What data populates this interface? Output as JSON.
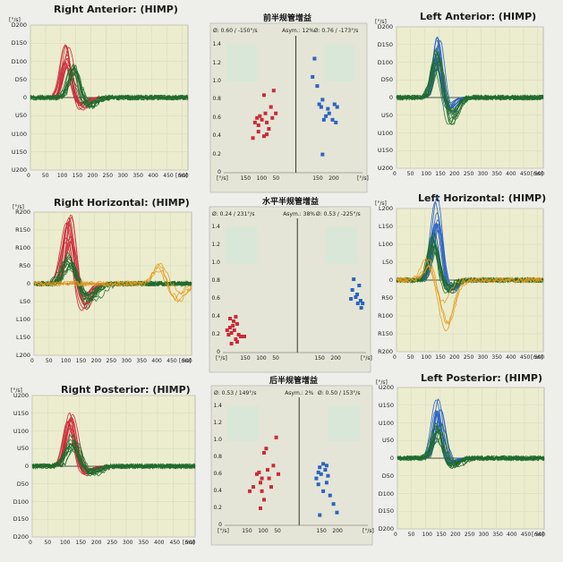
{
  "colors": {
    "red": "#cc2a37",
    "green": "#1f6b2e",
    "blue": "#2b63c4",
    "orange": "#e79a1b",
    "plotbg": "#ecedcf",
    "centerbg": "#e4e5d6"
  },
  "chart_data": [
    {
      "type": "line",
      "id": "ra",
      "title": "Right Anterior: (HIMP)",
      "unit": "[°/s]",
      "x_unit": "[ms]",
      "yticks": [
        "D200",
        "D150",
        "D100",
        "D50",
        "0",
        "U50",
        "U100",
        "U150",
        "U200"
      ],
      "xticks": [
        "0",
        "50",
        "100",
        "150",
        "200",
        "250",
        "300",
        "350",
        "400",
        "450",
        "500"
      ],
      "ylim": [
        -200,
        200
      ],
      "xlim": [
        0,
        520
      ],
      "series": [
        {
          "name": "head",
          "color": "red",
          "peak": 155,
          "center": 120,
          "width": 45,
          "undershoot": -25
        },
        {
          "name": "eye",
          "color": "green",
          "peak": 90,
          "center": 140,
          "width": 50,
          "undershoot": -20
        }
      ]
    },
    {
      "type": "line",
      "id": "rh",
      "title": "Right Horizontal: (HIMP)",
      "unit": "[°/s]",
      "x_unit": "[ms]",
      "yticks": [
        "R200",
        "R150",
        "R100",
        "R50",
        "0",
        "L50",
        "L100",
        "L150",
        "L200"
      ],
      "xticks": [
        "0",
        "50",
        "100",
        "150",
        "200",
        "250",
        "300",
        "350",
        "400",
        "450",
        "500"
      ],
      "ylim": [
        -200,
        200
      ],
      "xlim": [
        0,
        520
      ],
      "series": [
        {
          "name": "head",
          "color": "red",
          "peak": 210,
          "center": 115,
          "width": 48,
          "undershoot": -55
        },
        {
          "name": "eye",
          "color": "green",
          "peak": 85,
          "center": 115,
          "width": 60,
          "undershoot": -45
        },
        {
          "name": "saccade",
          "color": "orange",
          "peak": 60,
          "center": 420,
          "width": 60,
          "undershoot": -40
        }
      ]
    },
    {
      "type": "line",
      "id": "rp",
      "title": "Right Posterior: (HIMP)",
      "unit": "[°/s]",
      "x_unit": "[ms]",
      "yticks": [
        "U200",
        "U150",
        "U100",
        "U50",
        "0",
        "D50",
        "D100",
        "D150",
        "D200"
      ],
      "xticks": [
        "0",
        "50",
        "100",
        "150",
        "200",
        "250",
        "300",
        "350",
        "400",
        "450",
        "500"
      ],
      "ylim": [
        -200,
        200
      ],
      "xlim": [
        0,
        520
      ],
      "series": [
        {
          "name": "head",
          "color": "red",
          "peak": 170,
          "center": 120,
          "width": 48,
          "undershoot": -20
        },
        {
          "name": "eye",
          "color": "green",
          "peak": 90,
          "center": 130,
          "width": 55,
          "undershoot": -15
        }
      ]
    },
    {
      "type": "line",
      "id": "la",
      "title": "Left Anterior: (HIMP)",
      "unit": "[°/s]",
      "x_unit": "[ms]",
      "yticks": [
        "D200",
        "D150",
        "D100",
        "D50",
        "0",
        "U50",
        "U100",
        "U150",
        "U200"
      ],
      "xticks": [
        "0",
        "50",
        "100",
        "150",
        "200",
        "250",
        "300",
        "350",
        "400",
        "450",
        "500"
      ],
      "ylim": [
        -200,
        200
      ],
      "xlim": [
        0,
        520
      ],
      "series": [
        {
          "name": "head",
          "color": "blue",
          "peak": 185,
          "center": 145,
          "width": 42,
          "undershoot": -30
        },
        {
          "name": "eye",
          "color": "green",
          "peak": 140,
          "center": 145,
          "width": 45,
          "undershoot": -60
        }
      ]
    },
    {
      "type": "line",
      "id": "lh",
      "title": "Left Horizontal: (HIMP)",
      "unit": "[°/s]",
      "x_unit": "[ms]",
      "yticks": [
        "L200",
        "L150",
        "L100",
        "L50",
        "0",
        "R50",
        "R100",
        "R150",
        "R200"
      ],
      "xticks": [
        "0",
        "50",
        "100",
        "150",
        "200",
        "250",
        "300",
        "350",
        "400",
        "450",
        "500"
      ],
      "ylim": [
        -200,
        200
      ],
      "xlim": [
        0,
        520
      ],
      "series": [
        {
          "name": "head",
          "color": "blue",
          "peak": 240,
          "center": 140,
          "width": 45,
          "undershoot": -25
        },
        {
          "name": "eye",
          "color": "green",
          "peak": 130,
          "center": 135,
          "width": 50,
          "undershoot": -25
        },
        {
          "name": "saccade",
          "color": "orange",
          "peak": 70,
          "center": 110,
          "width": 60,
          "undershoot": -110
        }
      ]
    },
    {
      "type": "line",
      "id": "lp",
      "title": "Left Posterior: (HIMP)",
      "unit": "[°/s]",
      "x_unit": "[ms]",
      "yticks": [
        "U200",
        "U150",
        "U100",
        "U50",
        "0",
        "D50",
        "D100",
        "D150",
        "D200"
      ],
      "xticks": [
        "0",
        "50",
        "100",
        "150",
        "200",
        "250",
        "300",
        "350",
        "400",
        "450",
        "500"
      ],
      "ylim": [
        -200,
        200
      ],
      "xlim": [
        0,
        520
      ],
      "series": [
        {
          "name": "head",
          "color": "blue",
          "peak": 180,
          "center": 145,
          "width": 45,
          "undershoot": -15
        },
        {
          "name": "eye",
          "color": "green",
          "peak": 100,
          "center": 145,
          "width": 50,
          "undershoot": -20
        }
      ]
    },
    {
      "type": "scatter",
      "id": "ca",
      "title": "前半规管增益",
      "left_info": "Ø: 0.60 / -150°/s",
      "asym": "Asym.: 12%",
      "right_info": "Ø: 0.76 / -173°/s",
      "yticks": [
        "1.4",
        "1.2",
        "1.0",
        "0.8",
        "0.6",
        "0.4",
        "0.2",
        "0"
      ],
      "xticks_left": [
        "150",
        "100",
        "50"
      ],
      "xticks_right": [
        "150",
        "200"
      ],
      "x_unit": "[°/s]",
      "ylim": [
        0,
        1.5
      ],
      "left_points": [
        [
          0.42,
          0.38
        ],
        [
          0.45,
          0.55
        ],
        [
          0.48,
          0.6
        ],
        [
          0.5,
          0.52
        ],
        [
          0.52,
          0.62
        ],
        [
          0.55,
          0.58
        ],
        [
          0.5,
          0.45
        ],
        [
          0.58,
          0.85
        ],
        [
          0.6,
          0.65
        ],
        [
          0.62,
          0.55
        ],
        [
          0.65,
          0.48
        ],
        [
          0.68,
          0.72
        ],
        [
          0.7,
          0.6
        ],
        [
          0.72,
          0.9
        ],
        [
          0.75,
          0.65
        ],
        [
          0.58,
          0.4
        ],
        [
          0.62,
          0.42
        ]
      ],
      "right_points": [
        [
          0.25,
          1.05
        ],
        [
          0.28,
          1.25
        ],
        [
          0.32,
          0.95
        ],
        [
          0.35,
          0.75
        ],
        [
          0.38,
          0.72
        ],
        [
          0.4,
          0.8
        ],
        [
          0.42,
          0.58
        ],
        [
          0.45,
          0.62
        ],
        [
          0.48,
          0.7
        ],
        [
          0.5,
          0.65
        ],
        [
          0.55,
          0.58
        ],
        [
          0.6,
          0.55
        ],
        [
          0.62,
          0.72
        ],
        [
          0.4,
          0.2
        ],
        [
          0.58,
          0.75
        ]
      ]
    },
    {
      "type": "scatter",
      "id": "ch",
      "title": "水平半规管增益",
      "left_info": "Ø: 0.24 / 231°/s",
      "asym": "Asym.: 38%",
      "right_info": "Ø: 0.53 / -225°/s",
      "yticks": [
        "1.4",
        "1.2",
        "1.0",
        "0.8",
        "0.6",
        "0.4",
        "0.2",
        "0"
      ],
      "xticks_left": [
        "150",
        "100",
        "50"
      ],
      "xticks_right": [
        "150",
        "200"
      ],
      "x_unit": "[°/s]",
      "ylim": [
        0,
        1.5
      ],
      "left_points": [
        [
          0.08,
          0.2
        ],
        [
          0.1,
          0.28
        ],
        [
          0.12,
          0.22
        ],
        [
          0.14,
          0.3
        ],
        [
          0.15,
          0.35
        ],
        [
          0.16,
          0.25
        ],
        [
          0.18,
          0.4
        ],
        [
          0.2,
          0.32
        ],
        [
          0.22,
          0.2
        ],
        [
          0.25,
          0.18
        ],
        [
          0.12,
          0.1
        ],
        [
          0.3,
          0.18
        ],
        [
          0.1,
          0.38
        ],
        [
          0.18,
          0.15
        ],
        [
          0.06,
          0.25
        ],
        [
          0.2,
          0.12
        ]
      ],
      "right_points": [
        [
          0.78,
          0.6
        ],
        [
          0.8,
          0.7
        ],
        [
          0.82,
          0.82
        ],
        [
          0.85,
          0.62
        ],
        [
          0.88,
          0.55
        ],
        [
          0.9,
          0.75
        ],
        [
          0.92,
          0.58
        ],
        [
          0.95,
          0.55
        ],
        [
          0.93,
          0.5
        ],
        [
          0.87,
          0.65
        ]
      ]
    },
    {
      "type": "scatter",
      "id": "cp",
      "title": "后半规管增益",
      "left_info": "Ø: 0.53 / 149°/s",
      "asym": "Asym.: 2%",
      "right_info": "Ø: 0.50 / 153°/s",
      "yticks": [
        "1.4",
        "1.2",
        "1.0",
        "0.8",
        "0.6",
        "0.4",
        "0.2",
        "0"
      ],
      "xticks_left": [
        "150",
        "100",
        "50"
      ],
      "xticks_right": [
        "150",
        "200"
      ],
      "x_unit": "[°/s]",
      "ylim": [
        0,
        1.5
      ],
      "left_points": [
        [
          0.35,
          0.4
        ],
        [
          0.4,
          0.45
        ],
        [
          0.45,
          0.6
        ],
        [
          0.5,
          0.5
        ],
        [
          0.52,
          0.55
        ],
        [
          0.55,
          0.85
        ],
        [
          0.58,
          0.9
        ],
        [
          0.6,
          0.65
        ],
        [
          0.62,
          0.55
        ],
        [
          0.65,
          0.45
        ],
        [
          0.68,
          0.7
        ],
        [
          0.72,
          1.03
        ],
        [
          0.75,
          0.6
        ],
        [
          0.5,
          0.2
        ],
        [
          0.55,
          0.3
        ],
        [
          0.48,
          0.62
        ],
        [
          0.52,
          0.4
        ]
      ],
      "right_points": [
        [
          0.25,
          0.55
        ],
        [
          0.28,
          0.62
        ],
        [
          0.3,
          0.68
        ],
        [
          0.32,
          0.6
        ],
        [
          0.35,
          0.72
        ],
        [
          0.38,
          0.65
        ],
        [
          0.4,
          0.5
        ],
        [
          0.42,
          0.58
        ],
        [
          0.45,
          0.35
        ],
        [
          0.5,
          0.25
        ],
        [
          0.55,
          0.15
        ],
        [
          0.3,
          0.12
        ],
        [
          0.35,
          0.4
        ],
        [
          0.4,
          0.7
        ],
        [
          0.28,
          0.48
        ]
      ]
    }
  ]
}
